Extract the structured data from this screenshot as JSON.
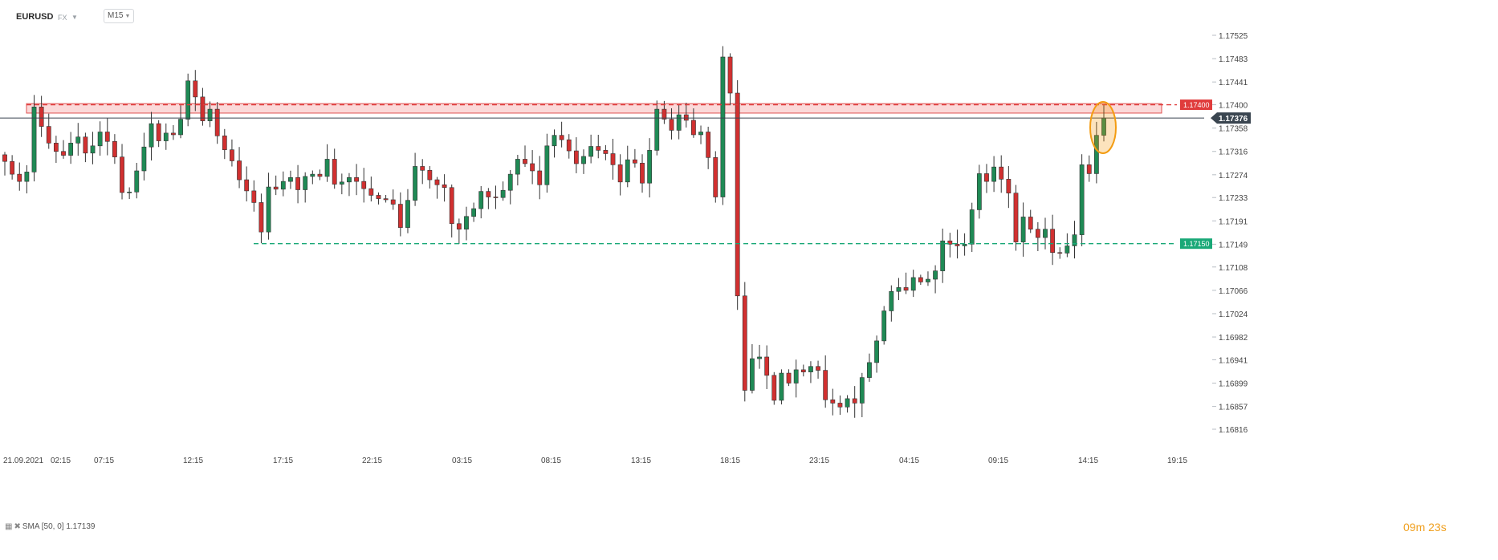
{
  "header": {
    "symbol": "EURUSD",
    "market": "FX",
    "timeframe": "M15"
  },
  "indicator": {
    "icons": [
      "indicator-settings-icon",
      "close-icon"
    ],
    "label": "SMA [50, 0] 1.17139"
  },
  "countdown": {
    "minutes": "09",
    "m_unit": "m",
    "seconds": "23",
    "s_unit": "s"
  },
  "colors": {
    "up": "#1f8a55",
    "down": "#d13030",
    "resistance": "#e03c3c",
    "support": "#19a877",
    "current": "#3a4550",
    "highlight": "#f39c12",
    "countdown": "#f0a020"
  },
  "chart_data": {
    "type": "candlestick",
    "timeframe": "M15",
    "y_axis": {
      "range": [
        1.1679,
        1.1755
      ],
      "ticks": [
        "1.17525",
        "1.17483",
        "1.17441",
        "1.17400",
        "1.17358",
        "1.17316",
        "1.17274",
        "1.17233",
        "1.17191",
        "1.17149",
        "1.17108",
        "1.17066",
        "1.17024",
        "1.16982",
        "1.16941",
        "1.16899",
        "1.16857",
        "1.16816"
      ]
    },
    "x_axis": {
      "ticks": [
        "21.09.2021",
        "02:15",
        "07:15",
        "12:15",
        "17:15",
        "22:15",
        "03:15",
        "08:15",
        "13:15",
        "18:15",
        "23:15",
        "04:15",
        "09:15",
        "14:15",
        "19:15"
      ]
    },
    "price_levels": [
      {
        "name": "resistance",
        "value": 1.174,
        "label": "1.17400"
      },
      {
        "name": "current",
        "value": 1.17376,
        "label": "1.17376"
      },
      {
        "name": "support",
        "value": 1.1715,
        "label": "1.17150"
      }
    ],
    "resistance_zone": [
      1.17385,
      1.17402
    ],
    "close_path": [
      1.17298,
      1.17275,
      1.17262,
      1.17279,
      1.17396,
      1.17361,
      1.17331,
      1.17316,
      1.17309,
      1.17331,
      1.17342,
      1.17313,
      1.17326,
      1.17351,
      1.17334,
      1.17306,
      1.17242,
      1.17243,
      1.17281,
      1.17324,
      1.17366,
      1.17335,
      1.17349,
      1.17346,
      1.17374,
      1.17443,
      1.17414,
      1.17371,
      1.17392,
      1.17344,
      1.17319,
      1.17299,
      1.17265,
      1.17245,
      1.17224,
      1.17171,
      1.17252,
      1.17248,
      1.17262,
      1.17269,
      1.17247,
      1.17271,
      1.17275,
      1.17271,
      1.17302,
      1.17257,
      1.17261,
      1.17269,
      1.17262,
      1.17249,
      1.17237,
      1.17231,
      1.17229,
      1.17221,
      1.17179,
      1.17228,
      1.17289,
      1.17282,
      1.17265,
      1.17256,
      1.17251,
      1.17186,
      1.17176,
      1.17199,
      1.17213,
      1.17244,
      1.17234,
      1.17233,
      1.17246,
      1.17275,
      1.17302,
      1.17294,
      1.17281,
      1.17256,
      1.17326,
      1.17345,
      1.17337,
      1.17317,
      1.17294,
      1.17307,
      1.17325,
      1.17318,
      1.17312,
      1.17292,
      1.17261,
      1.17301,
      1.17295,
      1.17259,
      1.17318,
      1.17392,
      1.17374,
      1.17354,
      1.17382,
      1.17372,
      1.17346,
      1.17351,
      1.17305,
      1.17234,
      1.17486,
      1.17421,
      1.17056,
      1.16886,
      1.16943,
      1.16946,
      1.16913,
      1.16868,
      1.16917,
      1.16899,
      1.16923,
      1.16919,
      1.16929,
      1.16922,
      1.16869,
      1.16863,
      1.16856,
      1.16871,
      1.16863,
      1.16909,
      1.16936,
      1.16975,
      1.17029,
      1.17064,
      1.17071,
      1.17066,
      1.17089,
      1.17081,
      1.17086,
      1.17101,
      1.17155,
      1.17149,
      1.17146,
      1.17149,
      1.17211,
      1.17276,
      1.17262,
      1.17288,
      1.17266,
      1.17241,
      1.17153,
      1.17198,
      1.17176,
      1.17161,
      1.17176,
      1.17134,
      1.17133,
      1.17146,
      1.17166,
      1.17292,
      1.17276,
      1.17345,
      1.17376
    ]
  }
}
